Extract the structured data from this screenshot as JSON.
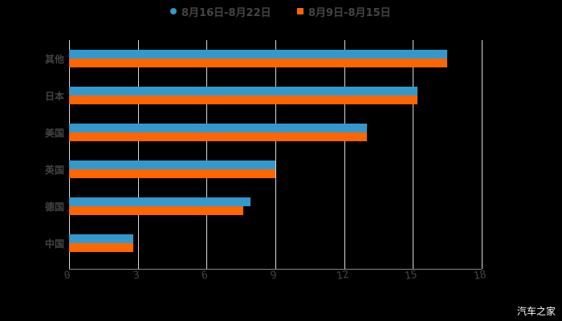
{
  "chart_data": {
    "type": "bar",
    "orientation": "horizontal",
    "title": "",
    "xlabel": "",
    "ylabel": "",
    "categories": [
      "其他",
      "日本",
      "美国",
      "英国",
      "德国",
      "中国"
    ],
    "series": [
      {
        "name": "8月16日-8月22日",
        "color": "#3399cc",
        "values": [
          16.5,
          15.2,
          13.0,
          9.0,
          7.9,
          2.8
        ]
      },
      {
        "name": "8月9日-8月15日",
        "color": "#ff6600",
        "values": [
          16.5,
          15.2,
          13.0,
          9.0,
          7.6,
          2.8
        ]
      }
    ],
    "xlim": [
      0,
      18
    ],
    "xticks": [
      "0",
      "3",
      "6",
      "9",
      "12",
      "15",
      "18"
    ],
    "grid": true,
    "legend_position": "top"
  },
  "legend": {
    "items": [
      {
        "label": "8月16日-8月22日",
        "color": "#3399cc",
        "marker": "circle"
      },
      {
        "label": "8月9日-8月15日",
        "color": "#ff6600",
        "marker": "square"
      }
    ]
  },
  "watermark": "汽车之家"
}
